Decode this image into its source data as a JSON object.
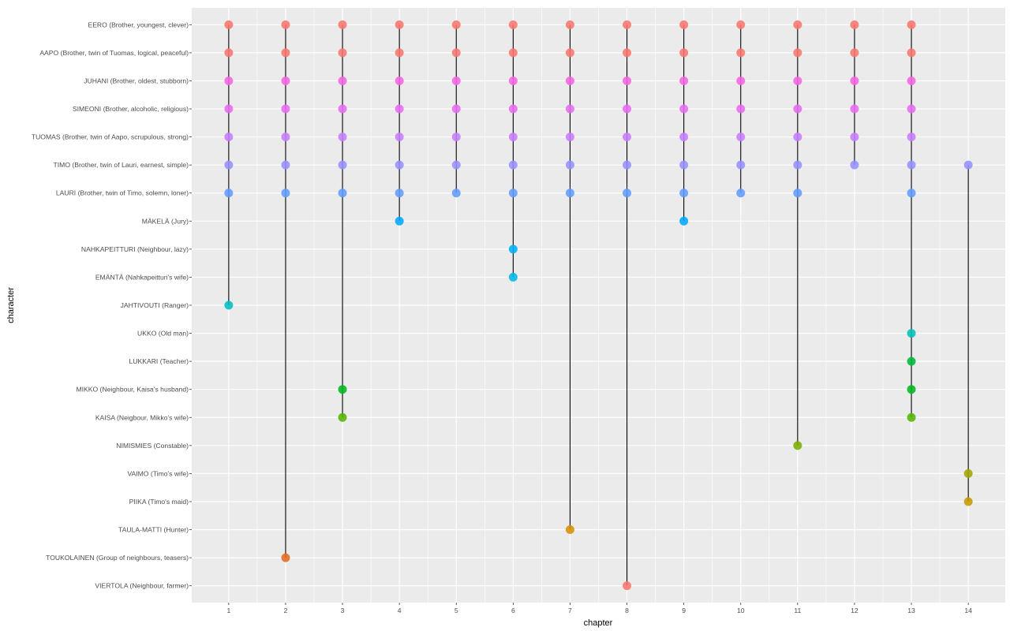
{
  "chart_data": {
    "type": "scatter",
    "title": "",
    "xlabel": "chapter",
    "ylabel": "character",
    "x_ticks": [
      1,
      2,
      3,
      4,
      5,
      6,
      7,
      8,
      9,
      10,
      11,
      12,
      13,
      14
    ],
    "xlim": [
      0.35,
      14.65
    ],
    "grid": true,
    "legend": "none",
    "characters": [
      "EERO (Brother, youngest, clever)",
      "AAPO (Brother, twin of Tuomas, logical, peaceful)",
      "JUHANI (Brother, oldest, stubborn)",
      "SIMEONI (Brother, alcoholic, religious)",
      "TUOMAS (Brother, twin of Aapo, scrupulous, strong)",
      "TIMO (Brother, twin of Lauri, earnest, simple)",
      "LAURI (Brother, twin of Timo, solemn, loner)",
      "MÄKELÄ (Jury)",
      "NAHKAPEITTURI (Neighbour, lazy)",
      "EMÄNTÄ (Nahkapeitturi's wife)",
      "JAHTIVOUTI (Ranger)",
      "UKKO (Old man)",
      "LUKKARI (Teacher)",
      "MIKKO (Neighbour, Kaisa's husband)",
      "KAISA (Neigbour, Mikko's wife)",
      "NIMISMIES (Constable)",
      "VAIMO (Timo's wife)",
      "PIIKA (Timo's maid)",
      "TAULA-MATTI (Hunter)",
      "TOUKOLAINEN (Group of neighbours, teasers)",
      "VIERTOLA (Neighbour, farmer)"
    ],
    "colors": [
      "#F8766D",
      "#F8766D",
      "#F564E3",
      "#E76BF3",
      "#C77CFF",
      "#9590FF",
      "#619CFF",
      "#00A9FF",
      "#00B0F6",
      "#00B8E7",
      "#00BFC4",
      "#00C0B8",
      "#00BA38",
      "#00B81F",
      "#53B400",
      "#7CAE00",
      "#A3A500",
      "#C49A00",
      "#D89000",
      "#E76B1F",
      "#F8766D"
    ],
    "appearances": [
      [
        1,
        2,
        3,
        4,
        5,
        6,
        7,
        8,
        9,
        10,
        11,
        12,
        13
      ],
      [
        1,
        2,
        3,
        4,
        5,
        6,
        7,
        8,
        9,
        10,
        11,
        12,
        13
      ],
      [
        1,
        2,
        3,
        4,
        5,
        6,
        7,
        8,
        9,
        10,
        11,
        12,
        13
      ],
      [
        1,
        2,
        3,
        4,
        5,
        6,
        7,
        8,
        9,
        10,
        11,
        12,
        13
      ],
      [
        1,
        2,
        3,
        4,
        5,
        6,
        7,
        8,
        9,
        10,
        11,
        12,
        13
      ],
      [
        1,
        2,
        3,
        4,
        5,
        6,
        7,
        8,
        9,
        10,
        11,
        12,
        13,
        14
      ],
      [
        1,
        2,
        3,
        4,
        5,
        6,
        7,
        8,
        9,
        10,
        11,
        13
      ],
      [
        4,
        9
      ],
      [
        6
      ],
      [
        6
      ],
      [
        1
      ],
      [
        13
      ],
      [
        13
      ],
      [
        3,
        13
      ],
      [
        3,
        13
      ],
      [
        11
      ],
      [
        14
      ],
      [
        14
      ],
      [
        7
      ],
      [
        2
      ],
      [
        8
      ]
    ]
  }
}
